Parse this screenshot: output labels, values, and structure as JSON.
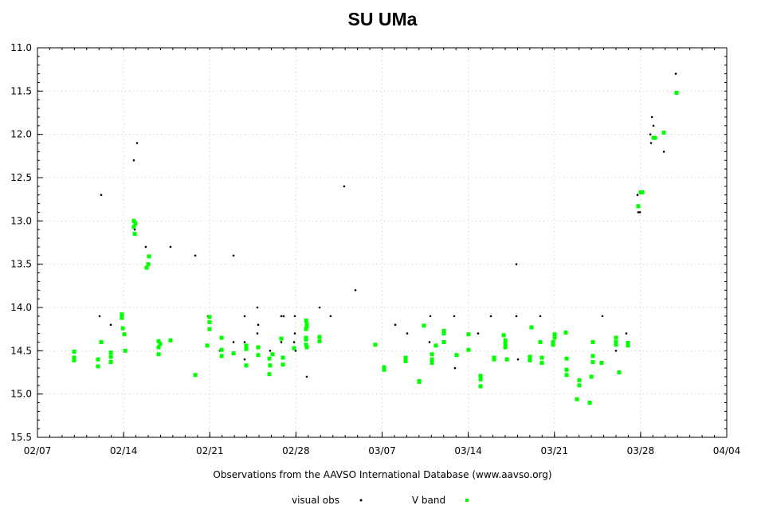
{
  "chart_data": {
    "type": "scatter",
    "title": "SU UMa",
    "xlabel": "Observations from the AAVSO International Database (www.aavso.org)",
    "ylabel": "",
    "x_unit": "days since 02/07",
    "xlim": [
      0,
      56
    ],
    "ylim": [
      11.0,
      15.5
    ],
    "y_inverted": true,
    "grid": true,
    "legend_placement": "bottom",
    "x_ticks": [
      {
        "day": 0,
        "label": "02/07"
      },
      {
        "day": 7,
        "label": "02/14"
      },
      {
        "day": 14,
        "label": "02/21"
      },
      {
        "day": 21,
        "label": "02/28"
      },
      {
        "day": 28,
        "label": "03/07"
      },
      {
        "day": 35,
        "label": "03/14"
      },
      {
        "day": 42,
        "label": "03/21"
      },
      {
        "day": 49,
        "label": "03/28"
      },
      {
        "day": 56,
        "label": "04/04"
      }
    ],
    "y_ticks": [
      "11.0",
      "11.5",
      "12.0",
      "12.5",
      "13.0",
      "13.5",
      "14.0",
      "14.5",
      "15.0",
      "15.5"
    ],
    "series": [
      {
        "name": "visual obs",
        "marker": "dot",
        "color": "#000000",
        "points": [
          [
            5.18,
            12.7
          ],
          [
            5.05,
            14.1
          ],
          [
            5.96,
            14.2
          ],
          [
            7.83,
            12.3
          ],
          [
            8.09,
            12.1
          ],
          [
            7.9,
            13.1
          ],
          [
            8.8,
            13.3
          ],
          [
            10.81,
            13.3
          ],
          [
            12.82,
            13.4
          ],
          [
            13.85,
            14.1
          ],
          [
            14.82,
            14.5
          ],
          [
            15.93,
            13.4
          ],
          [
            15.93,
            14.4
          ],
          [
            16.83,
            14.1
          ],
          [
            16.83,
            14.4
          ],
          [
            16.83,
            14.6
          ],
          [
            17.87,
            14.0
          ],
          [
            17.93,
            14.2
          ],
          [
            17.87,
            14.3
          ],
          [
            18.9,
            14.5
          ],
          [
            18.9,
            14.6
          ],
          [
            19.81,
            14.1
          ],
          [
            20.0,
            14.1
          ],
          [
            19.81,
            14.4
          ],
          [
            20.91,
            14.1
          ],
          [
            20.91,
            14.3
          ],
          [
            20.85,
            14.4
          ],
          [
            20.97,
            14.5
          ],
          [
            21.88,
            14.8
          ],
          [
            22.92,
            14.0
          ],
          [
            23.82,
            14.1
          ],
          [
            24.92,
            12.6
          ],
          [
            25.83,
            13.8
          ],
          [
            29.07,
            14.2
          ],
          [
            30.04,
            14.3
          ],
          [
            31.92,
            14.1
          ],
          [
            31.85,
            14.4
          ],
          [
            33.86,
            14.1
          ],
          [
            33.92,
            14.7
          ],
          [
            35.8,
            14.3
          ],
          [
            36.84,
            14.1
          ],
          [
            38.91,
            13.5
          ],
          [
            38.91,
            14.1
          ],
          [
            39.04,
            14.6
          ],
          [
            40.85,
            14.1
          ],
          [
            45.9,
            14.1
          ],
          [
            46.94,
            14.4
          ],
          [
            47.0,
            14.5
          ],
          [
            47.84,
            14.3
          ],
          [
            48.75,
            12.7
          ],
          [
            48.95,
            12.9
          ],
          [
            48.81,
            12.9
          ],
          [
            49.85,
            12.1
          ],
          [
            49.79,
            12.0
          ],
          [
            49.92,
            11.8
          ],
          [
            50.05,
            11.9
          ],
          [
            50.89,
            12.2
          ],
          [
            51.86,
            11.3
          ]
        ]
      },
      {
        "name": "V band",
        "marker": "square",
        "color": "#00ff00",
        "points": [
          [
            2.98,
            14.51
          ],
          [
            2.98,
            14.58
          ],
          [
            2.98,
            14.61
          ],
          [
            4.92,
            14.6
          ],
          [
            4.92,
            14.68
          ],
          [
            5.18,
            14.4
          ],
          [
            5.96,
            14.52
          ],
          [
            5.96,
            14.57
          ],
          [
            5.96,
            14.63
          ],
          [
            6.86,
            14.08
          ],
          [
            6.86,
            14.12
          ],
          [
            6.93,
            14.24
          ],
          [
            7.06,
            14.31
          ],
          [
            7.12,
            14.5
          ],
          [
            7.83,
            13.0
          ],
          [
            7.96,
            13.03
          ],
          [
            7.83,
            13.07
          ],
          [
            7.9,
            13.15
          ],
          [
            9.06,
            13.41
          ],
          [
            9.0,
            13.5
          ],
          [
            8.87,
            13.54
          ],
          [
            9.84,
            14.39
          ],
          [
            9.84,
            14.46
          ],
          [
            9.97,
            14.42
          ],
          [
            9.84,
            14.54
          ],
          [
            10.81,
            14.38
          ],
          [
            12.82,
            14.78
          ],
          [
            13.79,
            14.44
          ],
          [
            13.98,
            14.11
          ],
          [
            13.98,
            14.17
          ],
          [
            13.98,
            14.25
          ],
          [
            14.96,
            14.35
          ],
          [
            14.96,
            14.49
          ],
          [
            14.96,
            14.56
          ],
          [
            15.93,
            14.53
          ],
          [
            16.96,
            14.44
          ],
          [
            16.96,
            14.48
          ],
          [
            16.96,
            14.67
          ],
          [
            17.93,
            14.46
          ],
          [
            17.93,
            14.55
          ],
          [
            18.84,
            14.59
          ],
          [
            18.9,
            14.67
          ],
          [
            18.84,
            14.77
          ],
          [
            19.1,
            14.54
          ],
          [
            19.81,
            14.36
          ],
          [
            19.94,
            14.58
          ],
          [
            19.94,
            14.66
          ],
          [
            20.85,
            14.47
          ],
          [
            21.82,
            14.15
          ],
          [
            21.88,
            14.19
          ],
          [
            21.88,
            14.22
          ],
          [
            21.82,
            14.25
          ],
          [
            21.82,
            14.35
          ],
          [
            21.82,
            14.37
          ],
          [
            21.82,
            14.43
          ],
          [
            21.88,
            14.46
          ],
          [
            22.92,
            14.34
          ],
          [
            22.92,
            14.39
          ],
          [
            27.45,
            14.43
          ],
          [
            28.16,
            14.69
          ],
          [
            28.16,
            14.72
          ],
          [
            29.91,
            14.58
          ],
          [
            29.91,
            14.62
          ],
          [
            31.01,
            14.85
          ],
          [
            31.01,
            14.86
          ],
          [
            31.4,
            14.21
          ],
          [
            32.05,
            14.54
          ],
          [
            32.05,
            14.6
          ],
          [
            32.05,
            14.64
          ],
          [
            32.37,
            14.44
          ],
          [
            33.02,
            14.27
          ],
          [
            33.02,
            14.3
          ],
          [
            33.02,
            14.4
          ],
          [
            34.05,
            14.55
          ],
          [
            35.02,
            14.31
          ],
          [
            35.02,
            14.49
          ],
          [
            36.0,
            14.79
          ],
          [
            36.0,
            14.83
          ],
          [
            36.0,
            14.91
          ],
          [
            37.1,
            14.58
          ],
          [
            37.1,
            14.6
          ],
          [
            37.88,
            14.32
          ],
          [
            38.01,
            14.38
          ],
          [
            38.01,
            14.42
          ],
          [
            38.01,
            14.46
          ],
          [
            38.14,
            14.6
          ],
          [
            40.14,
            14.23
          ],
          [
            40.01,
            14.57
          ],
          [
            40.01,
            14.61
          ],
          [
            40.85,
            14.4
          ],
          [
            40.98,
            14.58
          ],
          [
            40.98,
            14.64
          ],
          [
            41.89,
            14.4
          ],
          [
            41.89,
            14.43
          ],
          [
            42.02,
            14.31
          ],
          [
            42.02,
            14.35
          ],
          [
            42.92,
            14.29
          ],
          [
            42.99,
            14.59
          ],
          [
            42.99,
            14.72
          ],
          [
            42.99,
            14.78
          ],
          [
            43.83,
            15.06
          ],
          [
            44.02,
            14.84
          ],
          [
            44.02,
            14.9
          ],
          [
            44.87,
            15.1
          ],
          [
            45.12,
            14.4
          ],
          [
            45.12,
            14.56
          ],
          [
            45.12,
            14.63
          ],
          [
            45.0,
            14.8
          ],
          [
            45.84,
            14.64
          ],
          [
            47.0,
            14.35
          ],
          [
            47.0,
            14.4
          ],
          [
            47.0,
            14.43
          ],
          [
            47.26,
            14.75
          ],
          [
            47.97,
            14.41
          ],
          [
            47.97,
            14.44
          ],
          [
            48.81,
            12.83
          ],
          [
            49.01,
            12.67
          ],
          [
            49.14,
            12.67
          ],
          [
            50.05,
            12.04
          ],
          [
            50.17,
            12.04
          ],
          [
            50.89,
            11.98
          ],
          [
            51.92,
            11.52
          ]
        ]
      }
    ]
  }
}
